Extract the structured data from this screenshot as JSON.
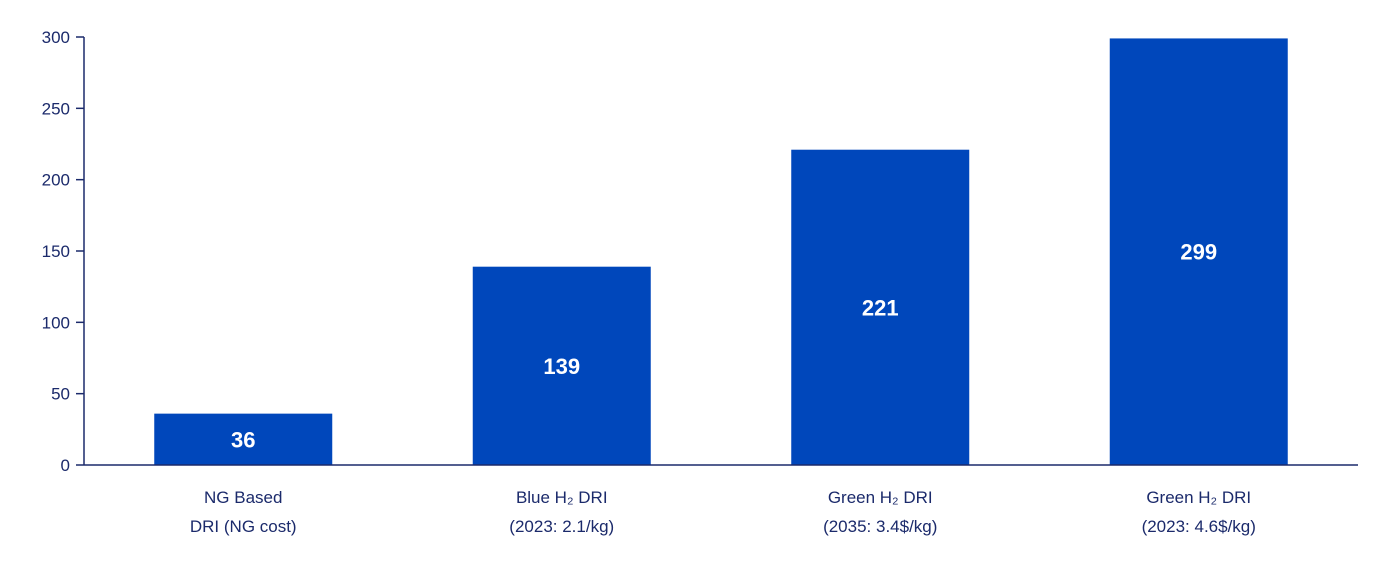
{
  "chart_data": {
    "type": "bar",
    "categories": [
      [
        "NG Based",
        "DRI (NG cost)"
      ],
      [
        "Blue H₂ DRI",
        "(2023: 2.1/kg)"
      ],
      [
        "Green H₂ DRI",
        "(2035: 3.4$/kg)"
      ],
      [
        "Green H₂ DRI",
        "(2023: 4.6$/kg)"
      ]
    ],
    "values": [
      36,
      139,
      221,
      299
    ],
    "data_labels": [
      "36",
      "139",
      "221",
      "299"
    ],
    "ylim": [
      0,
      300
    ],
    "yticks": [
      0,
      50,
      100,
      150,
      200,
      250,
      300
    ],
    "grid": false,
    "legend": "none",
    "colors": {
      "bar": "#0047bb",
      "axis": "#1b2a6b",
      "text": "#1b2a6b",
      "data_label": "#ffffff"
    }
  }
}
